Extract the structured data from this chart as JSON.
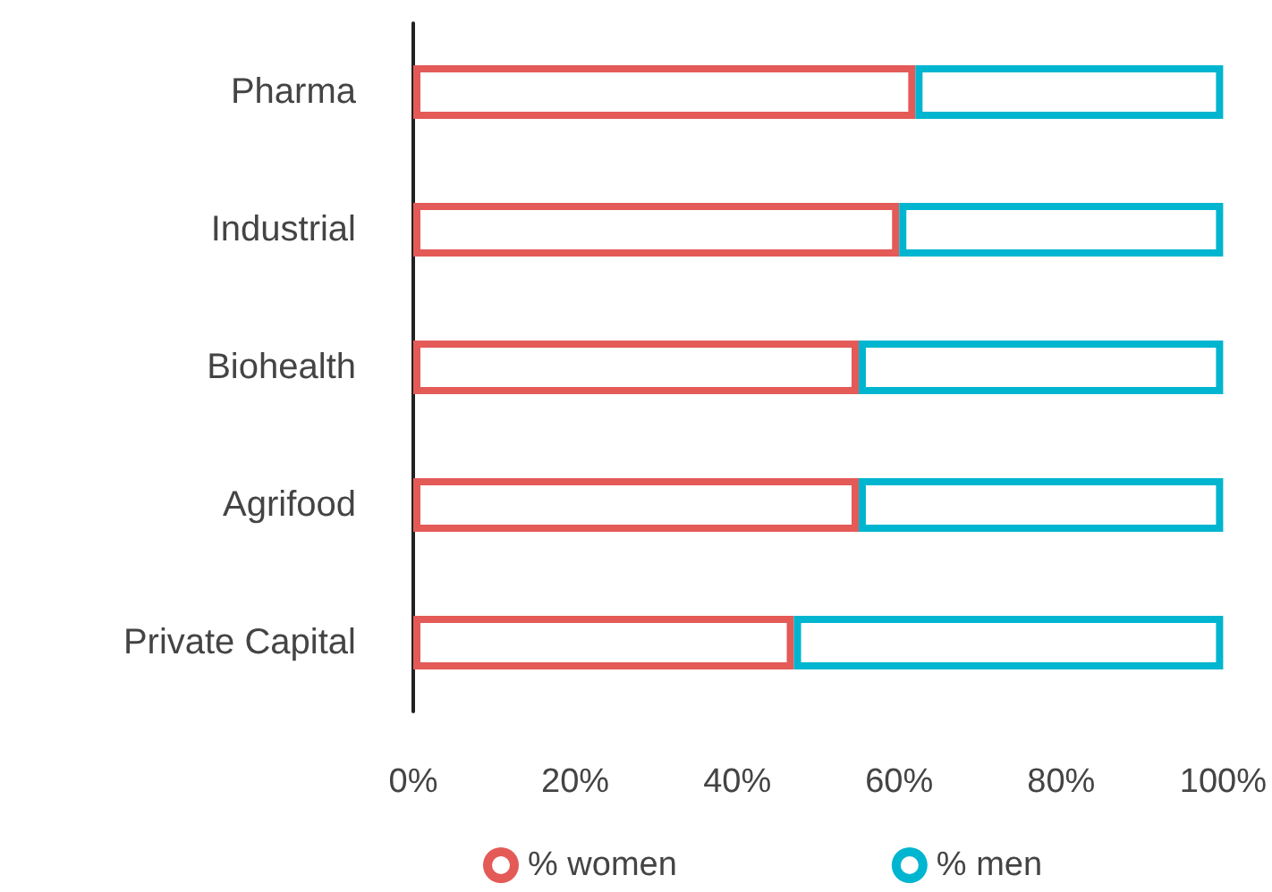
{
  "chart_data": {
    "type": "bar",
    "orientation": "horizontal",
    "stacked": true,
    "categories": [
      "Pharma",
      "Industrial",
      "Biohealth",
      "Agrifood",
      "Private Capital"
    ],
    "series": [
      {
        "name": "% women",
        "color": "#e35a57",
        "values": [
          62,
          60,
          55,
          55,
          47
        ]
      },
      {
        "name": "% men",
        "color": "#00b5cf",
        "values": [
          38,
          40,
          45,
          45,
          53
        ]
      }
    ],
    "xlim": [
      0,
      100
    ],
    "xticks": [
      {
        "value": 0,
        "label": "0%"
      },
      {
        "value": 20,
        "label": "20%"
      },
      {
        "value": 40,
        "label": "40%"
      },
      {
        "value": 60,
        "label": "60%"
      },
      {
        "value": 80,
        "label": "80%"
      },
      {
        "value": 100,
        "label": "100%"
      }
    ],
    "tick_labels": "x",
    "grid": false,
    "legend": "bottom"
  }
}
